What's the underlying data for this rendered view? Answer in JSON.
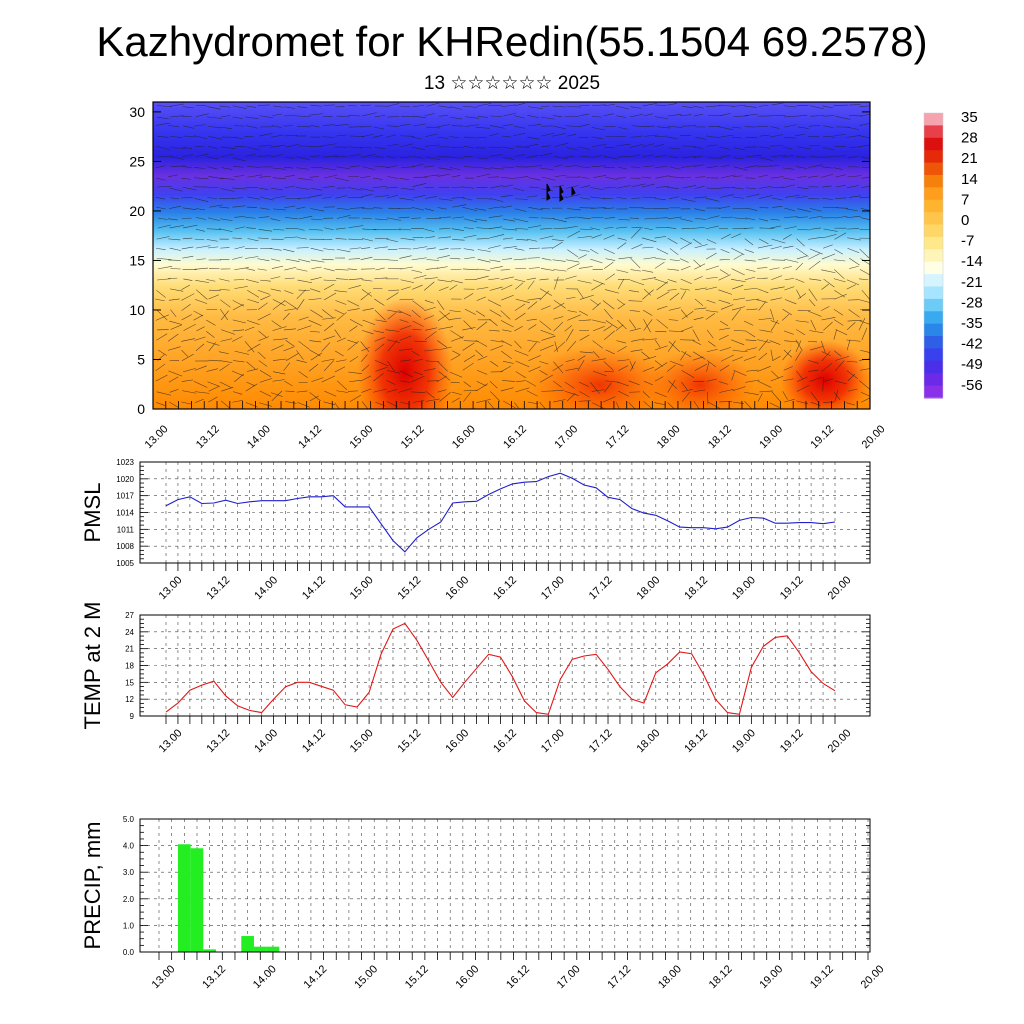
{
  "title": "Kazhydromet for KHRedin(55.1504 69.2578)",
  "subtitle": "13 ☆☆☆☆☆☆ 2025",
  "time_labels": [
    "13.00",
    "13.12",
    "14.00",
    "14.12",
    "15.00",
    "15.12",
    "16.00",
    "16.12",
    "17.00",
    "17.12",
    "18.00",
    "18.12",
    "19.00",
    "19.12",
    "20.00"
  ],
  "chart_data": [
    {
      "type": "heatmap",
      "title": "Kazhydromet for KHRedin(55.1504 69.2578)",
      "subtitle": "13 ☆☆☆☆☆☆ 2025",
      "x_tick_labels": [
        "13.00",
        "13.12",
        "14.00",
        "14.12",
        "15.00",
        "15.12",
        "16.00",
        "16.12",
        "17.00",
        "17.12",
        "18.00",
        "18.12",
        "19.00",
        "19.12",
        "20.00"
      ],
      "y_ticks": [
        0,
        5,
        10,
        15,
        20,
        25,
        30
      ],
      "ylim": [
        0,
        31
      ],
      "colorbar_labels": [
        "35",
        "28",
        "21",
        "14",
        "7",
        "0",
        "-7",
        "-14",
        "-21",
        "-28",
        "-35",
        "-42",
        "-49",
        "-56"
      ],
      "wind_vectors_overlay": true,
      "temperature_profile_samples": [
        {
          "level": 0,
          "values": [
            14,
            14,
            14,
            13,
            14,
            22,
            30,
            18,
            14,
            20,
            24,
            24,
            22,
            28,
            26
          ]
        },
        {
          "level": 5,
          "values": [
            12,
            12,
            12,
            12,
            13,
            22,
            27,
            15,
            12,
            16,
            20,
            20,
            18,
            22,
            20
          ]
        },
        {
          "level": 10,
          "values": [
            8,
            8,
            8,
            8,
            8,
            14,
            18,
            10,
            8,
            10,
            12,
            12,
            12,
            12,
            12
          ]
        },
        {
          "level": 15,
          "values": [
            -4,
            -4,
            -4,
            -4,
            -4,
            -2,
            0,
            -6,
            -8,
            -8,
            -10,
            -10,
            -10,
            -10,
            -10
          ]
        },
        {
          "level": 20,
          "values": [
            -30,
            -30,
            -30,
            -30,
            -30,
            -30,
            -28,
            -36,
            -40,
            -40,
            -38,
            -36,
            -34,
            -34,
            -34
          ]
        },
        {
          "level": 25,
          "values": [
            -52,
            -52,
            -52,
            -52,
            -52,
            -52,
            -52,
            -56,
            -58,
            -58,
            -56,
            -54,
            -54,
            -54,
            -54
          ]
        },
        {
          "level": 30,
          "values": [
            -46,
            -46,
            -46,
            -46,
            -46,
            -46,
            -46,
            -48,
            -50,
            -50,
            -48,
            -48,
            -48,
            -48,
            -48
          ]
        }
      ]
    },
    {
      "type": "line",
      "ylabel": "PMSL",
      "x_tick_labels": [
        "13.00",
        "13.12",
        "14.00",
        "14.12",
        "15.00",
        "15.12",
        "16.00",
        "16.12",
        "17.00",
        "17.12",
        "18.00",
        "18.12",
        "19.00",
        "19.12",
        "20.00"
      ],
      "y_tick_labels": [
        "1005",
        "1008",
        "1011",
        "1014",
        "1017",
        "1020",
        "1023"
      ],
      "ylim": [
        1005,
        1023
      ],
      "color": "#1f1fcc",
      "values": [
        1015.2,
        1016.3,
        1016.8,
        1015.6,
        1015.7,
        1016.2,
        1015.6,
        1015.9,
        1016.1,
        1016.1,
        1016.1,
        1016.5,
        1016.8,
        1016.8,
        1017.0,
        1015.0,
        1015.0,
        1015.0,
        1012.0,
        1009.0,
        1007.0,
        1009.5,
        1011.0,
        1012.3,
        1015.7,
        1015.9,
        1016.0,
        1017.2,
        1018.2,
        1019.1,
        1019.4,
        1019.5,
        1020.4,
        1021.0,
        1020.1,
        1018.9,
        1018.4,
        1016.7,
        1016.3,
        1014.7,
        1013.9,
        1013.5,
        1012.5,
        1011.4,
        1011.3,
        1011.3,
        1011.1,
        1011.4,
        1012.6,
        1013.1,
        1013.0,
        1012.1,
        1012.1,
        1012.2,
        1012.2,
        1012.0,
        1012.3
      ]
    },
    {
      "type": "line",
      "ylabel": "TEMP at 2 M",
      "x_tick_labels": [
        "13.00",
        "13.12",
        "14.00",
        "14.12",
        "15.00",
        "15.12",
        "16.00",
        "16.12",
        "17.00",
        "17.12",
        "18.00",
        "18.12",
        "19.00",
        "19.12",
        "20.00"
      ],
      "y_tick_labels": [
        "9",
        "12",
        "15",
        "18",
        "21",
        "24",
        "27"
      ],
      "ylim": [
        9,
        27
      ],
      "color": "#e01818",
      "values": [
        9.7,
        11.3,
        13.6,
        14.5,
        15.2,
        12.6,
        10.8,
        10.0,
        9.6,
        12.0,
        14.2,
        15.0,
        15.0,
        14.3,
        13.6,
        11.0,
        10.6,
        13.2,
        20.0,
        24.5,
        25.5,
        22.5,
        18.8,
        15.0,
        12.3,
        15.0,
        17.5,
        20.0,
        19.5,
        16.0,
        11.7,
        9.6,
        9.3,
        15.5,
        19.1,
        19.7,
        20.0,
        17.3,
        14.2,
        12.0,
        11.3,
        16.7,
        18.3,
        20.4,
        20.1,
        16.4,
        12.0,
        9.6,
        9.3,
        17.7,
        21.4,
        23.0,
        23.3,
        20.3,
        16.9,
        14.8,
        13.5
      ]
    },
    {
      "type": "bar",
      "ylabel": "PRECIP, mm",
      "x_tick_labels": [
        "13.00",
        "13.12",
        "14.00",
        "14.12",
        "15.00",
        "15.12",
        "16.00",
        "16.12",
        "17.00",
        "17.12",
        "18.00",
        "18.12",
        "19.00",
        "19.12",
        "20.00"
      ],
      "y_tick_labels": [
        "0.0",
        "1.0",
        "2.0",
        "3.0",
        "4.0",
        "5.0"
      ],
      "ylim": [
        0,
        5
      ],
      "color": "#22ee22",
      "values": [
        0,
        0,
        4.05,
        3.9,
        0.1,
        0,
        0,
        0.6,
        0.2,
        0.2,
        0,
        0,
        0,
        0,
        0,
        0,
        0,
        0,
        0,
        0,
        0,
        0,
        0,
        0,
        0,
        0,
        0,
        0,
        0,
        0,
        0,
        0,
        0,
        0,
        0,
        0,
        0,
        0,
        0,
        0,
        0,
        0,
        0,
        0,
        0,
        0,
        0,
        0,
        0,
        0,
        0,
        0,
        0,
        0,
        0,
        0,
        0
      ]
    }
  ]
}
